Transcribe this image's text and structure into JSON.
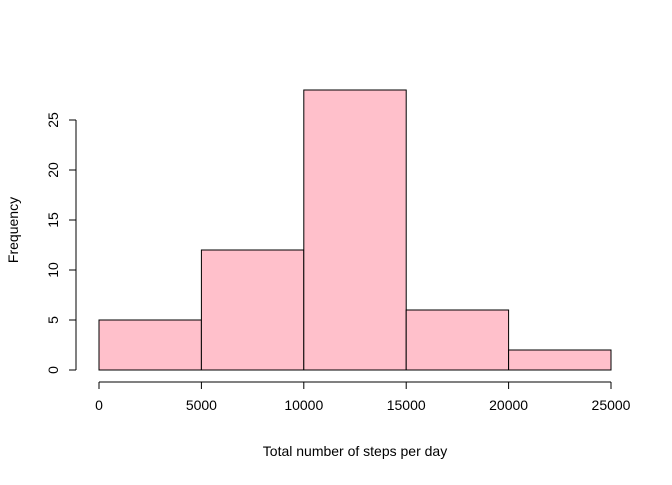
{
  "chart_data": {
    "type": "histogram",
    "title": "",
    "xlabel": "Total number of steps per day",
    "ylabel": "Frequency",
    "bins": [
      {
        "from": 0,
        "to": 5000,
        "count": 5
      },
      {
        "from": 5000,
        "to": 10000,
        "count": 12
      },
      {
        "from": 10000,
        "to": 15000,
        "count": 28
      },
      {
        "from": 15000,
        "to": 20000,
        "count": 6
      },
      {
        "from": 20000,
        "to": 25000,
        "count": 2
      }
    ],
    "x_ticks": [
      0,
      5000,
      10000,
      15000,
      20000,
      25000
    ],
    "y_ticks": [
      0,
      5,
      10,
      15,
      20,
      25
    ],
    "xlim": [
      0,
      25000
    ],
    "ylim": [
      0,
      28
    ],
    "grid": false,
    "colors": {
      "bar_fill": "#FFC0CB",
      "bar_stroke": "#000000"
    }
  }
}
